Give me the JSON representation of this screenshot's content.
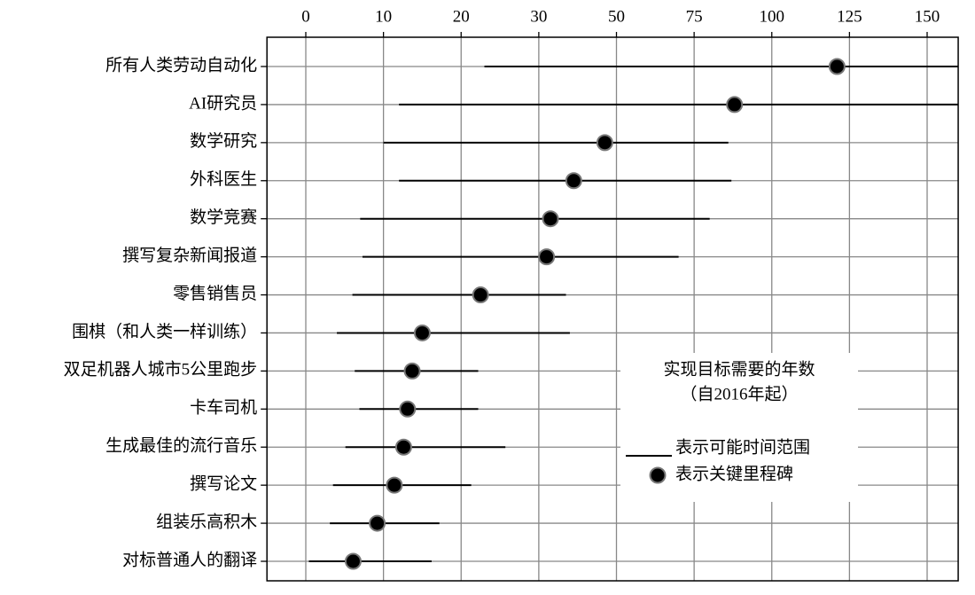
{
  "chart_data": {
    "type": "range-dot",
    "categories": [
      "所有人类劳动自动化",
      "AI研究员",
      "数学研究",
      "外科医生",
      "数学竞赛",
      "撰写复杂新闻报道",
      "零售销售员",
      "围棋（和人类一样训练）",
      "双足机器人城市5公里跑步",
      "卡车司机",
      "生成最佳的流行音乐",
      "撰写论文",
      "组装乐高积木",
      "对标普通人的翻译"
    ],
    "series": [
      {
        "name": "表示可能时间范围",
        "color": "#000000",
        "kind": "range",
        "low": [
          23,
          12,
          10,
          12,
          7,
          7.3,
          6,
          4,
          6.3,
          6.9,
          5.1,
          3.5,
          3.1,
          0.4
        ],
        "high": [
          160,
          160,
          86,
          87,
          80,
          70,
          37,
          38,
          22.2,
          22.2,
          25.7,
          21.3,
          17.2,
          16.2
        ]
      },
      {
        "name": "表示关键里程碑",
        "color": "#000000",
        "kind": "dot",
        "values": [
          121,
          88,
          47,
          39,
          33,
          32,
          22.5,
          15,
          13.7,
          13.1,
          12.6,
          11.4,
          9.2,
          6.1
        ]
      }
    ],
    "x_label": [
      "实现目标需要的年数",
      "（自2016年起）"
    ],
    "xlim": [
      -5,
      160
    ],
    "xticks": [
      0,
      10,
      20,
      30,
      50,
      75,
      100,
      125,
      150
    ],
    "x_scale": "segmented",
    "grid": true
  }
}
